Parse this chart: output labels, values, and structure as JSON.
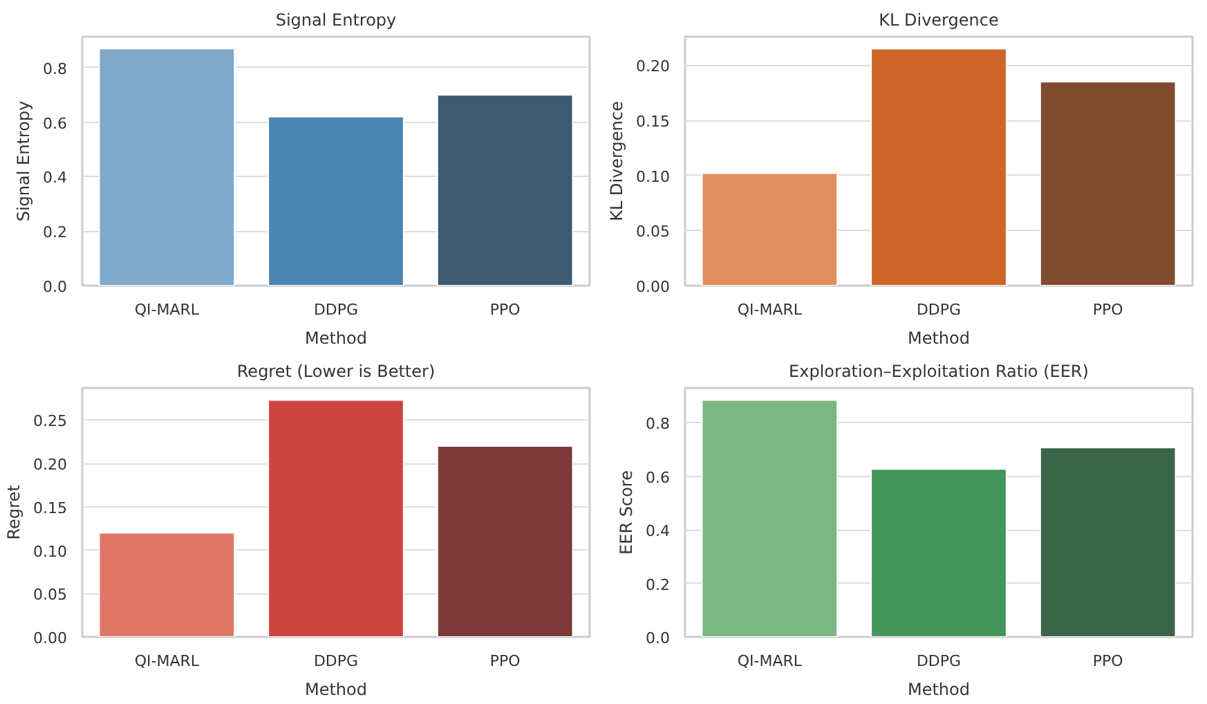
{
  "chart_data": [
    {
      "type": "bar",
      "title": "Signal Entropy",
      "xlabel": "Method",
      "ylabel": "Signal Entropy",
      "categories": [
        "QI-MARL",
        "DDPG",
        "PPO"
      ],
      "values": [
        0.87,
        0.62,
        0.7
      ],
      "colors": [
        "#7ea9c9",
        "#4a84b1",
        "#3d5a71"
      ],
      "ylim": [
        0,
        0.914
      ],
      "yticks": [
        {
          "value": 0,
          "label": "0.0"
        },
        0.2,
        0.4,
        0.6,
        0.8
      ],
      "grid": "y"
    },
    {
      "type": "bar",
      "title": "KL Divergence",
      "xlabel": "Method",
      "ylabel": "KL Divergence",
      "categories": [
        "QI-MARL",
        "DDPG",
        "PPO"
      ],
      "values": [
        0.102,
        0.215,
        0.185
      ],
      "colors": [
        "#df8f5d",
        "#ce6529",
        "#7e4b2e"
      ],
      "ylim": [
        0,
        0.226
      ],
      "yticks": [
        {
          "value": 0,
          "label": "0.00"
        },
        0.05,
        {
          "value": 0.1,
          "label": "0.10"
        },
        0.15,
        {
          "value": 0.2,
          "label": "0.20"
        }
      ],
      "grid": "y"
    },
    {
      "type": "bar",
      "title": "Regret (Lower is Better)",
      "xlabel": "Method",
      "ylabel": "Regret",
      "categories": [
        "QI-MARL",
        "DDPG",
        "PPO"
      ],
      "values": [
        0.12,
        0.273,
        0.22
      ],
      "colors": [
        "#df7769",
        "#cb4540",
        "#7c3b38"
      ],
      "ylim": [
        0,
        0.287
      ],
      "yticks": [
        {
          "value": 0,
          "label": "0.00"
        },
        0.05,
        {
          "value": 0.1,
          "label": "0.10"
        },
        0.15,
        {
          "value": 0.2,
          "label": "0.20"
        },
        0.25
      ],
      "grid": "y"
    },
    {
      "type": "bar",
      "title": "Exploration–Exploitation Ratio (EER)",
      "xlabel": "Method",
      "ylabel": "EER Score",
      "categories": [
        "QI-MARL",
        "DDPG",
        "PPO"
      ],
      "values": [
        0.885,
        0.627,
        0.707
      ],
      "colors": [
        "#7db685",
        "#45955c",
        "#3a6549"
      ],
      "ylim": [
        0,
        0.93
      ],
      "yticks": [
        {
          "value": 0,
          "label": "0.0"
        },
        0.2,
        0.4,
        0.6,
        0.8
      ],
      "grid": "y"
    }
  ]
}
